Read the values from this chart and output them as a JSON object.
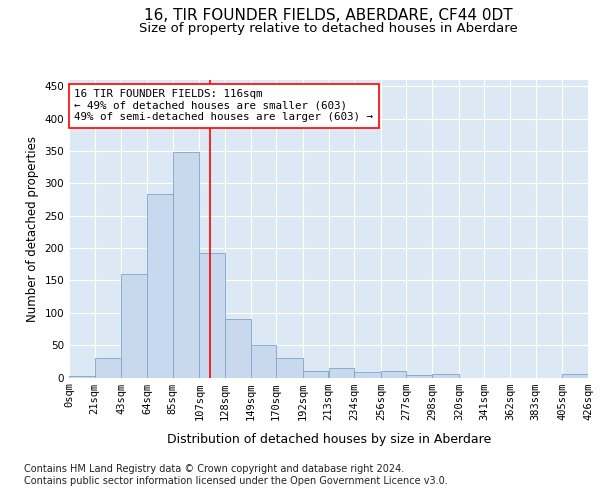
{
  "title": "16, TIR FOUNDER FIELDS, ABERDARE, CF44 0DT",
  "subtitle": "Size of property relative to detached houses in Aberdare",
  "xlabel": "Distribution of detached houses by size in Aberdare",
  "ylabel": "Number of detached properties",
  "footer_line1": "Contains HM Land Registry data © Crown copyright and database right 2024.",
  "footer_line2": "Contains public sector information licensed under the Open Government Licence v3.0.",
  "annotation_line1": "16 TIR FOUNDER FIELDS: 116sqm",
  "annotation_line2": "← 49% of detached houses are smaller (603)",
  "annotation_line3": "49% of semi-detached houses are larger (603) →",
  "bar_color": "#c8d9ee",
  "bar_edge_color": "#7aa6cc",
  "redline_x": 116,
  "bin_edges": [
    0,
    21,
    43,
    64,
    85,
    107,
    128,
    149,
    170,
    192,
    213,
    234,
    256,
    277,
    298,
    320,
    341,
    362,
    383,
    405,
    426
  ],
  "bar_heights": [
    2,
    30,
    160,
    283,
    348,
    192,
    90,
    50,
    30,
    10,
    15,
    8,
    10,
    4,
    5,
    0,
    0,
    0,
    0,
    5
  ],
  "ylim": [
    0,
    460
  ],
  "yticks": [
    0,
    50,
    100,
    150,
    200,
    250,
    300,
    350,
    400,
    450
  ],
  "background_color": "#dce9f5",
  "title_fontsize": 11,
  "subtitle_fontsize": 9.5,
  "ylabel_fontsize": 8.5,
  "xlabel_fontsize": 9,
  "tick_fontsize": 7.5,
  "footer_fontsize": 7,
  "ann_fontsize": 7.8
}
